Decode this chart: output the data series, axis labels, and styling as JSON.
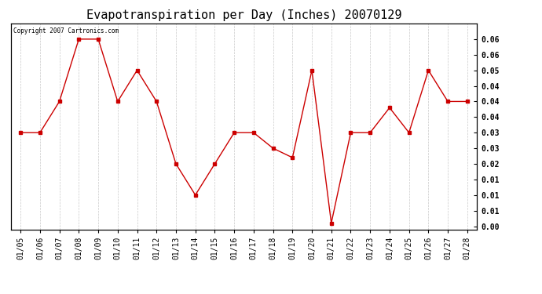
{
  "title": "Evapotranspiration per Day (Inches) 20070129",
  "copyright": "Copyright 2007 Cartronics.com",
  "dates": [
    "01/05",
    "01/06",
    "01/07",
    "01/08",
    "01/09",
    "01/10",
    "01/11",
    "01/12",
    "01/13",
    "01/14",
    "01/15",
    "01/16",
    "01/17",
    "01/18",
    "01/19",
    "01/20",
    "01/21",
    "01/22",
    "01/23",
    "01/24",
    "01/25",
    "01/26",
    "01/27",
    "01/28"
  ],
  "values": [
    0.03,
    0.03,
    0.04,
    0.06,
    0.06,
    0.04,
    0.05,
    0.04,
    0.02,
    0.01,
    0.02,
    0.03,
    0.03,
    0.025,
    0.022,
    0.05,
    0.001,
    0.03,
    0.03,
    0.038,
    0.03,
    0.05,
    0.04,
    0.04
  ],
  "line_color": "#cc0000",
  "marker": "s",
  "marker_size": 2.5,
  "bg_color": "#ffffff",
  "grid_color": "#bbbbbb",
  "ylim_min": -0.001,
  "ylim_max": 0.065,
  "title_fontsize": 11,
  "tick_fontsize": 7,
  "right_tick_positions": [
    0.0,
    0.005,
    0.01,
    0.015,
    0.02,
    0.025,
    0.03,
    0.035,
    0.04,
    0.045,
    0.05,
    0.055,
    0.06
  ],
  "right_tick_labels": [
    "0.00",
    "0.01",
    "0.01",
    "0.01",
    "0.02",
    "0.03",
    "0.03",
    "0.04",
    "0.04",
    "0.04",
    "0.05",
    "0.06",
    "0.06"
  ]
}
